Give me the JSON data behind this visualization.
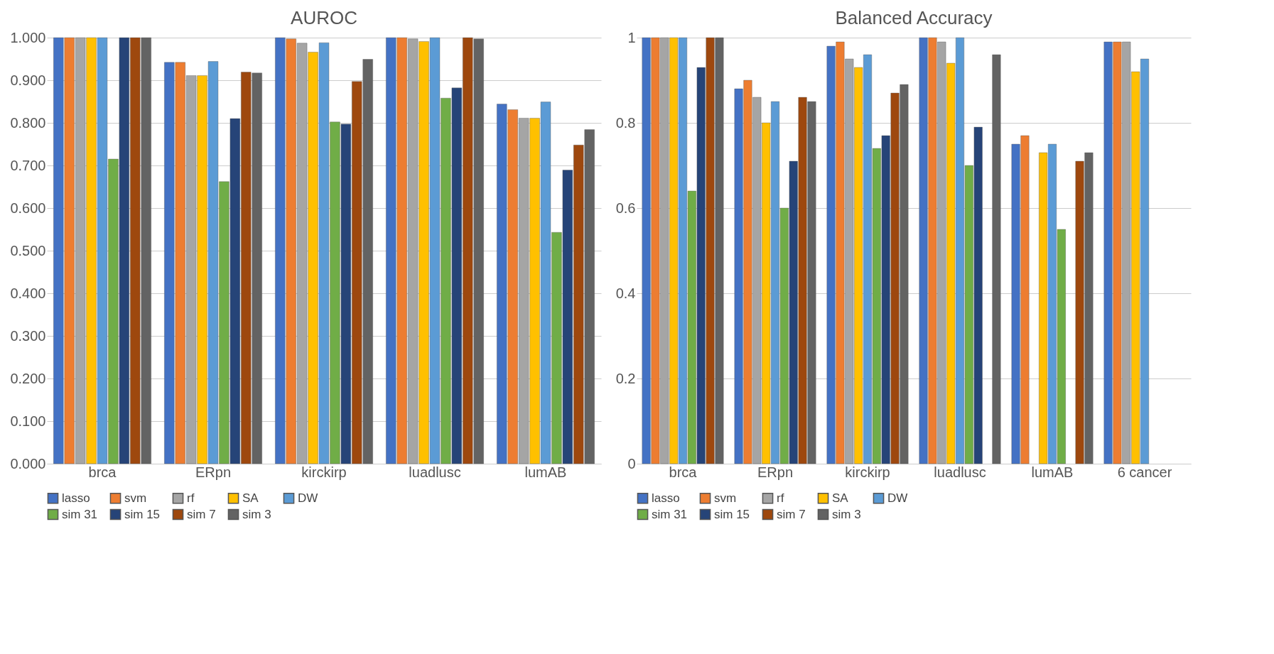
{
  "chart_data": [
    {
      "type": "bar",
      "title": "AUROC",
      "categories": [
        "brca",
        "ERpn",
        "kirckirp",
        "luadlusc",
        "lumAB"
      ],
      "ylim": [
        0,
        1
      ],
      "yticks": [
        {
          "value": 0,
          "label": "0.000"
        },
        {
          "value": 0.1,
          "label": "0.100"
        },
        {
          "value": 0.2,
          "label": "0.200"
        },
        {
          "value": 0.3,
          "label": "0.300"
        },
        {
          "value": 0.4,
          "label": "0.400"
        },
        {
          "value": 0.5,
          "label": "0.500"
        },
        {
          "value": 0.6,
          "label": "0.600"
        },
        {
          "value": 0.7,
          "label": "0.700"
        },
        {
          "value": 0.8,
          "label": "0.800"
        },
        {
          "value": 0.9,
          "label": "0.900"
        },
        {
          "value": 1,
          "label": "1.000"
        }
      ],
      "grid": "y",
      "legend": "bottom",
      "series": [
        {
          "name": "lasso",
          "color": "#4472c4",
          "values": [
            1.0,
            0.942,
            1.0,
            1.0,
            0.844
          ]
        },
        {
          "name": "svm",
          "color": "#ed7d31",
          "values": [
            1.0,
            0.942,
            0.997,
            1.0,
            0.831
          ]
        },
        {
          "name": "rf",
          "color": "#a5a5a5",
          "values": [
            1.0,
            0.911,
            0.987,
            0.997,
            0.811
          ]
        },
        {
          "name": "SA",
          "color": "#ffc000",
          "values": [
            1.0,
            0.911,
            0.966,
            0.991,
            0.811
          ]
        },
        {
          "name": "DW",
          "color": "#5b9bd5",
          "values": [
            1.0,
            0.944,
            0.988,
            1.0,
            0.849
          ]
        },
        {
          "name": "sim 31",
          "color": "#70ad47",
          "values": [
            0.715,
            0.662,
            0.802,
            0.858,
            0.543
          ]
        },
        {
          "name": "sim 15",
          "color": "#264478",
          "values": [
            1.0,
            0.81,
            0.797,
            0.882,
            0.689
          ]
        },
        {
          "name": "sim 7",
          "color": "#9e480e",
          "values": [
            1.0,
            0.919,
            0.897,
            1.0,
            0.748
          ]
        },
        {
          "name": "sim 3",
          "color": "#636363",
          "values": [
            1.0,
            0.917,
            0.949,
            0.997,
            0.784
          ]
        }
      ]
    },
    {
      "type": "bar",
      "title": "Balanced Accuracy",
      "categories": [
        "brca",
        "ERpn",
        "kirckirp",
        "luadlusc",
        "lumAB",
        "6 cancer"
      ],
      "ylim": [
        0,
        1
      ],
      "yticks": [
        0,
        0.2,
        0.4,
        0.6,
        0.8,
        1
      ],
      "grid": "y",
      "legend": "bottom",
      "series": [
        {
          "name": "lasso",
          "color": "#4472c4",
          "values": [
            1.0,
            0.88,
            0.98,
            1.0,
            0.75,
            0.99
          ]
        },
        {
          "name": "svm",
          "color": "#ed7d31",
          "values": [
            1.0,
            0.9,
            0.99,
            1.0,
            0.77,
            0.99
          ]
        },
        {
          "name": "rf",
          "color": "#a5a5a5",
          "values": [
            1.0,
            0.86,
            0.95,
            0.99,
            null,
            0.99
          ]
        },
        {
          "name": "SA",
          "color": "#ffc000",
          "values": [
            1.0,
            0.8,
            0.93,
            0.94,
            0.73,
            0.92
          ]
        },
        {
          "name": "DW",
          "color": "#5b9bd5",
          "values": [
            1.0,
            0.85,
            0.96,
            1.0,
            0.75,
            0.95
          ]
        },
        {
          "name": "sim 31",
          "color": "#70ad47",
          "values": [
            0.64,
            0.6,
            0.74,
            0.7,
            0.55,
            null
          ]
        },
        {
          "name": "sim 15",
          "color": "#264478",
          "values": [
            0.93,
            0.71,
            0.77,
            0.79,
            null,
            null
          ]
        },
        {
          "name": "sim 7",
          "color": "#9e480e",
          "values": [
            1.0,
            0.86,
            0.87,
            null,
            0.71,
            null
          ]
        },
        {
          "name": "sim 3",
          "color": "#636363",
          "values": [
            1.0,
            0.85,
            0.89,
            0.96,
            0.73,
            null
          ]
        }
      ]
    }
  ]
}
